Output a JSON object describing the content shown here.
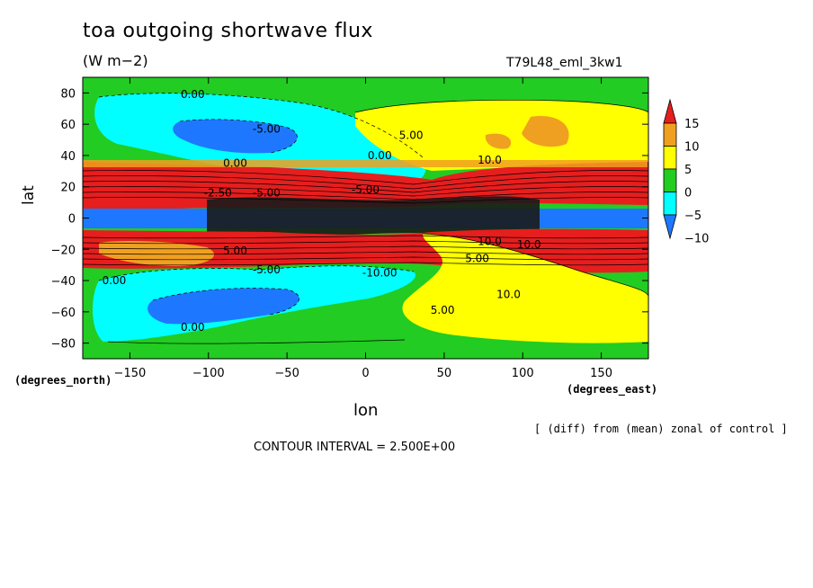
{
  "chart_data": {
    "type": "heatmap",
    "title": "toa outgoing shortwave flux",
    "units": "(W m−2)",
    "run_label": "T79L48_eml_3kw1",
    "xlabel": "lon",
    "ylabel": "lat",
    "x_unit_label": "(degrees_east)",
    "y_unit_label": "(degrees_north)",
    "xlim": [
      -180,
      180
    ],
    "ylim": [
      -90,
      90
    ],
    "x_ticks": [
      -150,
      -100,
      -50,
      0,
      50,
      100,
      150
    ],
    "x_tick_labels": [
      "−150",
      "−100",
      "−50",
      "0",
      "50",
      "100",
      "150"
    ],
    "y_ticks": [
      80,
      60,
      40,
      20,
      0,
      -20,
      -40,
      -60,
      -80
    ],
    "y_tick_labels": [
      "80",
      "60",
      "40",
      "20",
      "0",
      "−20",
      "−40",
      "−60",
      "−80"
    ],
    "colorbar": {
      "levels": [
        15,
        10,
        5,
        0,
        -5,
        -10
      ],
      "level_labels": [
        "15",
        "10",
        "5",
        "0",
        "−5",
        "−10"
      ],
      "colors": [
        "#e61e1e",
        "#f0a020",
        "#ffff00",
        "#22cc22",
        "#00ffff",
        "#1e78ff"
      ]
    },
    "contour_labels": [
      {
        "text": "0.00",
        "lon": -110,
        "lat": 79
      },
      {
        "text": "-5.00",
        "lon": -63,
        "lat": 57
      },
      {
        "text": "5.00",
        "lon": 29,
        "lat": 53
      },
      {
        "text": "0.00",
        "lon": 9,
        "lat": 40
      },
      {
        "text": "0.00",
        "lon": -83,
        "lat": 35
      },
      {
        "text": "10.0",
        "lon": 79,
        "lat": 37
      },
      {
        "text": "-5.00",
        "lon": 0,
        "lat": 18
      },
      {
        "text": "-5.00",
        "lon": -63,
        "lat": 16
      },
      {
        "text": "-2.50",
        "lon": -94,
        "lat": 16
      },
      {
        "text": "10.0",
        "lon": 79,
        "lat": -15
      },
      {
        "text": "10.0",
        "lon": 104,
        "lat": -17
      },
      {
        "text": "5.00",
        "lon": -83,
        "lat": -21
      },
      {
        "text": "5.00",
        "lon": 71,
        "lat": -26
      },
      {
        "text": "-5.00",
        "lon": -63,
        "lat": -33
      },
      {
        "text": "-10.00",
        "lon": 9,
        "lat": -35
      },
      {
        "text": "0.00",
        "lon": -160,
        "lat": -40
      },
      {
        "text": "10.0",
        "lon": 91,
        "lat": -49
      },
      {
        "text": "5.00",
        "lon": 49,
        "lat": -59
      },
      {
        "text": "0.00",
        "lon": -110,
        "lat": -70
      }
    ],
    "annotation": "[ (diff) from (mean) zonal of control ]",
    "contour_interval_text": "CONTOUR INTERVAL = 2.500E+00",
    "grid": false,
    "legend_position": "right"
  }
}
